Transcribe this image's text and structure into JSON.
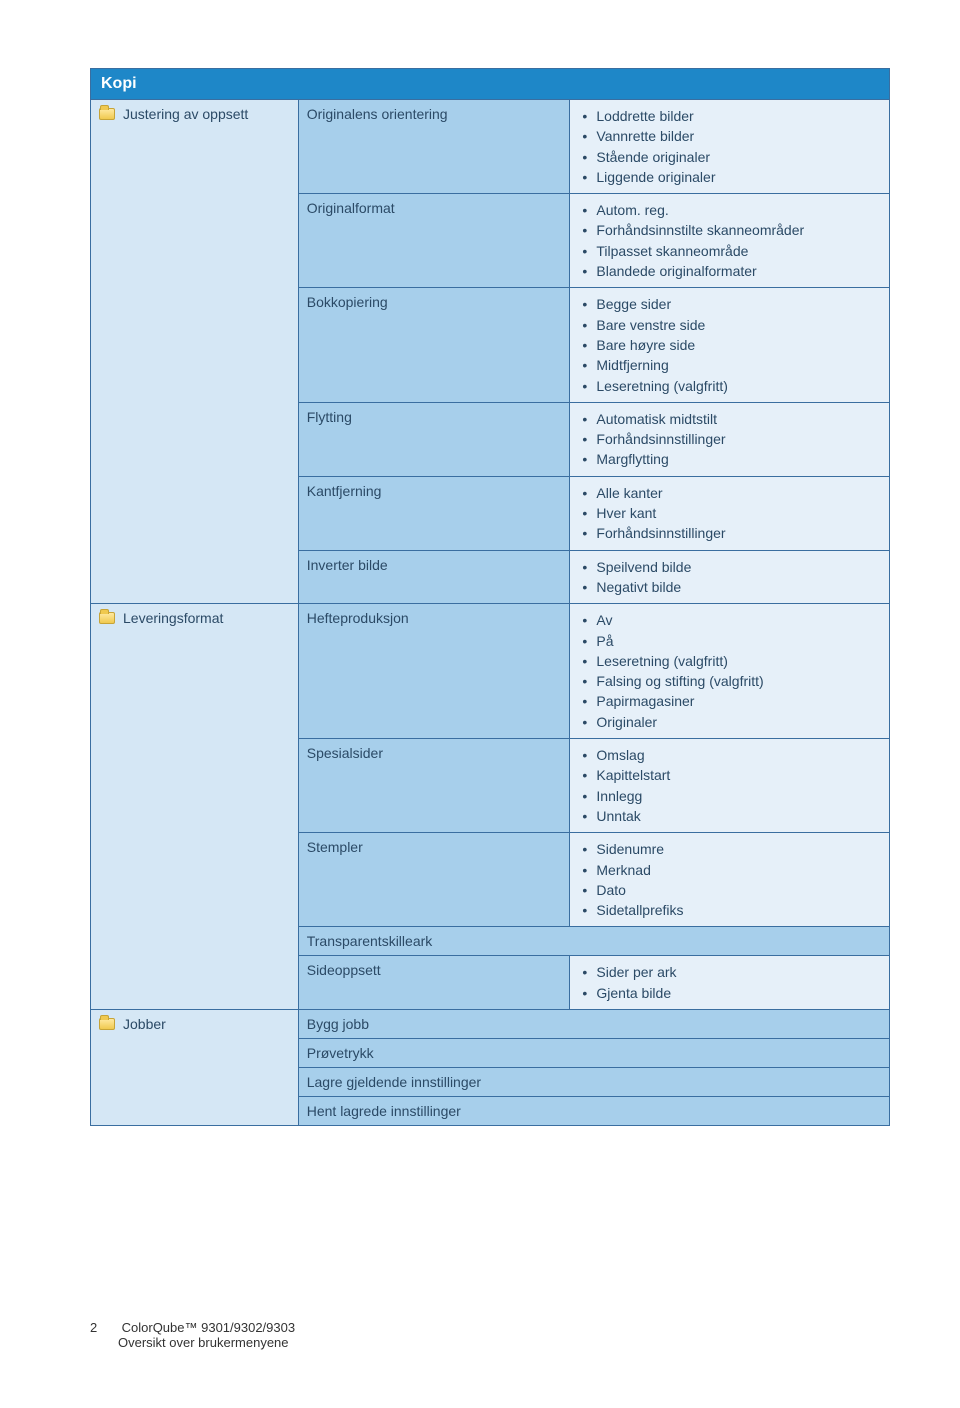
{
  "header": {
    "title": "Kopi"
  },
  "sections": [
    {
      "label": "Justering av oppsett",
      "rows": [
        {
          "setting": "Originalens orientering",
          "values": [
            "Loddrette bilder",
            "Vannrette bilder",
            "Stående originaler",
            "Liggende originaler"
          ]
        },
        {
          "setting": "Originalformat",
          "values": [
            "Autom. reg.",
            "Forhåndsinnstilte skanneområder",
            "Tilpasset skanneområde",
            "Blandede originalformater"
          ]
        },
        {
          "setting": "Bokkopiering",
          "values": [
            "Begge sider",
            "Bare venstre side",
            "Bare høyre side",
            "Midtfjerning",
            "Leseretning (valgfritt)"
          ]
        },
        {
          "setting": "Flytting",
          "values": [
            "Automatisk midtstilt",
            "Forhåndsinnstillinger",
            "Margflytting"
          ]
        },
        {
          "setting": "Kantfjerning",
          "values": [
            "Alle kanter",
            "Hver kant",
            "Forhåndsinnstillinger"
          ]
        },
        {
          "setting": "Inverter bilde",
          "values": [
            "Speilvend bilde",
            "Negativt bilde"
          ]
        }
      ]
    },
    {
      "label": "Leveringsformat",
      "rows": [
        {
          "setting": "Hefteproduksjon",
          "values": [
            "Av",
            "På",
            "Leseretning (valgfritt)",
            "Falsing og stifting (valgfritt)",
            "Papirmagasiner",
            "Originaler"
          ]
        },
        {
          "setting": "Spesialsider",
          "values": [
            "Omslag",
            "Kapittelstart",
            "Innlegg",
            "Unntak"
          ]
        },
        {
          "setting": "Stempler",
          "values": [
            "Sidenumre",
            "Merknad",
            "Dato",
            "Sidetallprefiks"
          ]
        },
        {
          "setting": "Transparentskilleark",
          "fullspan": true
        },
        {
          "setting": "Sideoppsett",
          "values": [
            "Sider per ark",
            "Gjenta bilde"
          ]
        }
      ]
    },
    {
      "label": "Jobber",
      "rows": [
        {
          "setting": "Bygg jobb",
          "fullspan": true
        },
        {
          "setting": "Prøvetrykk",
          "fullspan": true
        },
        {
          "setting": "Lagre gjeldende innstillinger",
          "fullspan": true
        },
        {
          "setting": "Hent lagrede innstillinger",
          "fullspan": true
        }
      ]
    }
  ],
  "footer": {
    "page_number": "2",
    "product": "ColorQube™ 9301/9302/9303",
    "subtitle": "Oversikt over brukermenyene"
  }
}
